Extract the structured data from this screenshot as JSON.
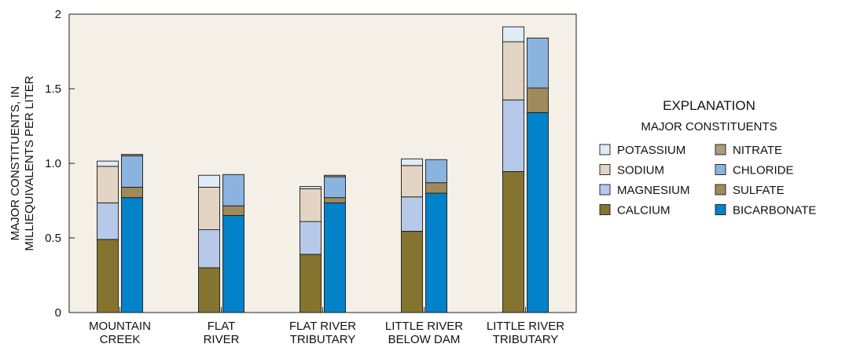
{
  "chart_data": {
    "type": "bar",
    "stacked": true,
    "grouped": true,
    "ylabel": [
      "MAJOR CONSTITUENTS, IN",
      "MILLIEQUIVALENTS PER LITER"
    ],
    "ylim": [
      0,
      2
    ],
    "yticks": [
      {
        "value": 0,
        "label": "0"
      },
      {
        "value": 0.5,
        "label": "0.5"
      },
      {
        "value": 1.0,
        "label": "1.0"
      },
      {
        "value": 1.5,
        "label": "1.5"
      },
      {
        "value": 2,
        "label": "2"
      }
    ],
    "categories": [
      {
        "lines": [
          "MOUNTAIN",
          "CREEK"
        ]
      },
      {
        "lines": [
          "FLAT",
          "RIVER"
        ]
      },
      {
        "lines": [
          "FLAT RIVER",
          "TRIBUTARY"
        ]
      },
      {
        "lines": [
          "LITTLE RIVER",
          "BELOW DAM"
        ]
      },
      {
        "lines": [
          "LITTLE RIVER",
          "TRIBUTARY"
        ]
      }
    ],
    "groups": [
      {
        "name": "cations",
        "series": [
          {
            "name": "CALCIUM",
            "color": "#857430",
            "values": [
              0.49,
              0.3,
              0.39,
              0.545,
              0.945
            ]
          },
          {
            "name": "MAGNESIUM",
            "color": "#b7c9e8",
            "values": [
              0.245,
              0.255,
              0.22,
              0.23,
              0.48
            ]
          },
          {
            "name": "SODIUM",
            "color": "#e3d4c3",
            "values": [
              0.245,
              0.285,
              0.22,
              0.21,
              0.39
            ]
          },
          {
            "name": "POTASSIUM",
            "color": "#e0ebf8",
            "values": [
              0.035,
              0.08,
              0.015,
              0.045,
              0.1
            ]
          }
        ]
      },
      {
        "name": "anions",
        "series": [
          {
            "name": "BICARBONATE",
            "color": "#0282c9",
            "values": [
              0.77,
              0.65,
              0.735,
              0.8,
              1.34
            ]
          },
          {
            "name": "SULFATE",
            "color": "#9f8a5c",
            "values": [
              0.07,
              0.065,
              0.035,
              0.07,
              0.165
            ]
          },
          {
            "name": "CHLORIDE",
            "color": "#8ab3e0",
            "values": [
              0.21,
              0.21,
              0.14,
              0.155,
              0.335
            ]
          },
          {
            "name": "NITRATE",
            "color": "#ad9b7b",
            "values": [
              0.01,
              0.0,
              0.01,
              0.0,
              0.0
            ]
          }
        ]
      }
    ],
    "legend": {
      "title": "EXPLANATION",
      "subtitle": "MAJOR CONSTITUENTS",
      "placement": "right",
      "columns": [
        [
          {
            "name": "POTASSIUM",
            "color": "#e0ebf8"
          },
          {
            "name": "SODIUM",
            "color": "#e3d4c3"
          },
          {
            "name": "MAGNESIUM",
            "color": "#b7c9e8"
          },
          {
            "name": "CALCIUM",
            "color": "#857430"
          }
        ],
        [
          {
            "name": "NITRATE",
            "color": "#ad9b7b"
          },
          {
            "name": "CHLORIDE",
            "color": "#8ab3e0"
          },
          {
            "name": "SULFATE",
            "color": "#9f8a5c"
          },
          {
            "name": "BICARBONATE",
            "color": "#0282c9"
          }
        ]
      ]
    },
    "background_color": "#f4efe7",
    "grid": false
  }
}
